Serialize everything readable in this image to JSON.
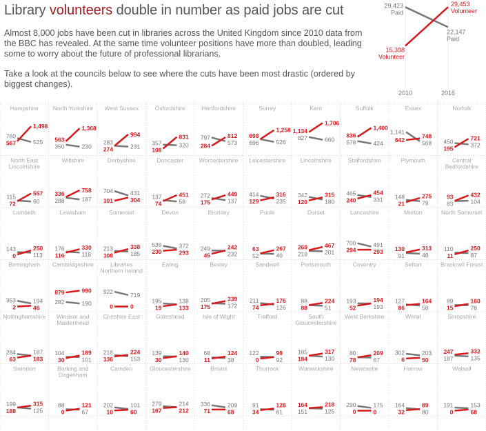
{
  "header": {
    "title_pre": "Library ",
    "title_highlight": "volunteers",
    "title_post": " double in number as paid jobs are cut",
    "paragraph1": "Almost 8,000 jobs have been cut in libraries across the United Kingdom since 2010 data from the BBC has revealed. At the same time volunteer positions have more than doubled, leading some to worry about the future of professional librarians.",
    "paragraph2": "Take a look at the councils below to see where the cuts have been most drastic (ordered by biggest changes)."
  },
  "colors": {
    "paid": "#777777",
    "volunteer": "#d7191c",
    "highlight": "#a31c23",
    "grid": "#dddddd",
    "name": "#aaaaaa"
  },
  "chart_data": {
    "type": "line",
    "subtype": "slope-small-multiples",
    "x": [
      "2010",
      "2016"
    ],
    "summary": {
      "series": [
        {
          "name": "Paid",
          "values": [
            29423,
            22147
          ]
        },
        {
          "name": "Volunteer",
          "values": [
            15398,
            29453
          ]
        }
      ],
      "value_labels": {
        "paid": [
          "29,423",
          "22,147"
        ],
        "volunteer": [
          "15,398",
          "29,453"
        ]
      }
    },
    "councils": [
      {
        "name": "Hampshire",
        "paid": [
          760,
          525
        ],
        "volunteer": [
          567,
          1498
        ]
      },
      {
        "name": "North Yorkshire",
        "paid": [
          350,
          230
        ],
        "volunteer": [
          563,
          1368
        ]
      },
      {
        "name": "West Sussex",
        "paid": [
          283,
          231
        ],
        "volunteer": [
          274,
          994
        ]
      },
      {
        "name": "Oxfordshire",
        "paid": [
          357,
          320
        ],
        "volunteer": [
          108,
          831
        ]
      },
      {
        "name": "Hertfordshire",
        "paid": [
          797,
          573
        ],
        "volunteer": [
          284,
          812
        ]
      },
      {
        "name": "Surrey",
        "paid": [
          696,
          526
        ],
        "volunteer": [
          698,
          1258
        ]
      },
      {
        "name": "Kent",
        "paid": [
          827,
          660
        ],
        "volunteer": [
          1134,
          1706
        ]
      },
      {
        "name": "Suffolk",
        "paid": [
          578,
          424
        ],
        "volunteer": [
          836,
          1400
        ]
      },
      {
        "name": "Essex",
        "paid": [
          1141,
          568
        ],
        "volunteer": [
          642,
          748
        ]
      },
      {
        "name": "Norfolk",
        "paid": [
          450,
          372
        ],
        "volunteer": [
          195,
          721
        ]
      },
      {
        "name": "North East Lincolnshire",
        "paid": [
          115,
          60
        ],
        "volunteer": [
          72,
          557
        ]
      },
      {
        "name": "Wiltshire",
        "paid": [
          288,
          187
        ],
        "volunteer": [
          336,
          758
        ]
      },
      {
        "name": "Derbyshire",
        "paid": [
          704,
          431
        ],
        "volunteer": [
          101,
          304
        ]
      },
      {
        "name": "Doncaster",
        "paid": [
          137,
          58
        ],
        "volunteer": [
          74,
          451
        ]
      },
      {
        "name": "Worcestershire",
        "paid": [
          272,
          137
        ],
        "volunteer": [
          175,
          449
        ]
      },
      {
        "name": "Leicestershire",
        "paid": [
          414,
          235
        ],
        "volunteer": [
          129,
          316
        ]
      },
      {
        "name": "Lincolnshire",
        "paid": [
          342,
          180
        ],
        "volunteer": [
          120,
          315
        ]
      },
      {
        "name": "Staffordshire",
        "paid": [
          465,
          331
        ],
        "volunteer": [
          240,
          454
        ]
      },
      {
        "name": "Plymouth",
        "paid": [
          148,
          79
        ],
        "volunteer": [
          21,
          275
        ]
      },
      {
        "name": "Central Bedfordshire",
        "paid": [
          83,
          104
        ],
        "volunteer": [
          93,
          432
        ]
      },
      {
        "name": "Lambeth",
        "paid": [
          143,
          113
        ],
        "volunteer": [
          0,
          250
        ]
      },
      {
        "name": "Lewisham",
        "paid": [
          176,
          118
        ],
        "volunteer": [
          116,
          330
        ]
      },
      {
        "name": "Somerset",
        "paid": [
          213,
          185
        ],
        "volunteer": [
          108,
          338
        ]
      },
      {
        "name": "Devon",
        "paid": [
          539,
          372
        ],
        "volunteer": [
          230,
          293
        ]
      },
      {
        "name": "Bromley",
        "paid": [
          249,
          232
        ],
        "volunteer": [
          45,
          242
        ]
      },
      {
        "name": "Poole",
        "paid": [
          52,
          40
        ],
        "volunteer": [
          63,
          267
        ]
      },
      {
        "name": "Dorset",
        "paid": [
          219,
          201
        ],
        "volunteer": [
          269,
          467
        ]
      },
      {
        "name": "Lancashire",
        "paid": [
          700,
          491
        ],
        "volunteer": [
          294,
          293
        ]
      },
      {
        "name": "Merton",
        "paid": [
          91,
          48
        ],
        "volunteer": [
          130,
          313
        ]
      },
      {
        "name": "North Somerset",
        "paid": [
          110,
          87
        ],
        "volunteer": [
          11,
          250
        ]
      },
      {
        "name": "Birmingham",
        "paid": [
          353,
          194
        ],
        "volunteer": [
          2,
          46
        ]
      },
      {
        "name": "Cambridgeshire",
        "paid": [
          282,
          190
        ],
        "volunteer": [
          879,
          990
        ]
      },
      {
        "name": "Libraries Northern Ireland",
        "paid": [
          922,
          719
        ],
        "volunteer": [
          0,
          0
        ]
      },
      {
        "name": "Ealing",
        "paid": [
          195,
          138
        ],
        "volunteer": [
          19,
          133
        ]
      },
      {
        "name": "Bexley",
        "paid": [
          205,
          172
        ],
        "volunteer": [
          175,
          339
        ]
      },
      {
        "name": "Sandwell",
        "paid": [
          211,
          126
        ],
        "volunteer": [
          74,
          176
        ]
      },
      {
        "name": "Portsmouth",
        "paid": [
          88,
          51
        ],
        "volunteer": [
          88,
          224
        ]
      },
      {
        "name": "Coventry",
        "paid": [
          193,
          193
        ],
        "volunteer": [
          52,
          194
        ]
      },
      {
        "name": "Sefton",
        "paid": [
          127,
          58
        ],
        "volunteer": [
          86,
          164
        ]
      },
      {
        "name": "Bracknell Forest",
        "paid": [
          89,
          78
        ],
        "volunteer": [
          15,
          160
        ]
      },
      {
        "name": "Nottinghamshire",
        "paid": [
          284,
          187
        ],
        "volunteer": [
          63,
          183
        ]
      },
      {
        "name": "Windsor and Maidenhead",
        "paid": [
          104,
          101
        ],
        "volunteer": [
          30,
          189
        ]
      },
      {
        "name": "Cheshire East",
        "paid": [
          216,
          153
        ],
        "volunteer": [
          136,
          224
        ]
      },
      {
        "name": "Gateshead",
        "paid": [
          139,
          130
        ],
        "volunteer": [
          30,
          140
        ]
      },
      {
        "name": "Isle of Wight",
        "paid": [
          68,
          38
        ],
        "volunteer": [
          11,
          124
        ]
      },
      {
        "name": "Trafford",
        "paid": [
          122,
          92
        ],
        "volunteer": [
          0,
          99
        ]
      },
      {
        "name": "South Gloucestershire",
        "paid": [
          185,
          130
        ],
        "volunteer": [
          184,
          317
        ]
      },
      {
        "name": "West Berkshire",
        "paid": [
          80,
          67
        ],
        "volunteer": [
          78,
          209
        ]
      },
      {
        "name": "Wirral",
        "paid": [
          302,
          203
        ],
        "volunteer": [
          6,
          50
        ]
      },
      {
        "name": "Shropshire",
        "paid": [
          187,
          135
        ],
        "volunteer": [
          247,
          332
        ]
      },
      {
        "name": "Swindon",
        "paid": [
          199,
          125
        ],
        "volunteer": [
          188,
          315
        ]
      },
      {
        "name": "Barking and Dagenham",
        "paid": [
          88,
          67
        ],
        "volunteer": [
          0,
          121
        ]
      },
      {
        "name": "Camden",
        "paid": [
          202,
          101
        ],
        "volunteer": [
          10,
          60
        ]
      },
      {
        "name": "Gloucestershire",
        "paid": [
          279,
          214
        ],
        "volunteer": [
          167,
          212
        ]
      },
      {
        "name": "Bristol",
        "paid": [
          336,
          209
        ],
        "volunteer": [
          71,
          68
        ]
      },
      {
        "name": "Thurrock",
        "paid": [
          91,
          61
        ],
        "volunteer": [
          34,
          128
        ]
      },
      {
        "name": "Warwickshire",
        "paid": [
          151,
          125
        ],
        "volunteer": [
          164,
          218
        ]
      },
      {
        "name": "Newcastle",
        "paid": [
          290,
          175
        ],
        "volunteer": [
          0,
          0
        ]
      },
      {
        "name": "Harrow",
        "paid": [
          164,
          80
        ],
        "volunteer": [
          32,
          89
        ]
      },
      {
        "name": "Walsall",
        "paid": [
          191,
          153
        ],
        "volunteer": [
          0,
          68
        ]
      }
    ]
  }
}
